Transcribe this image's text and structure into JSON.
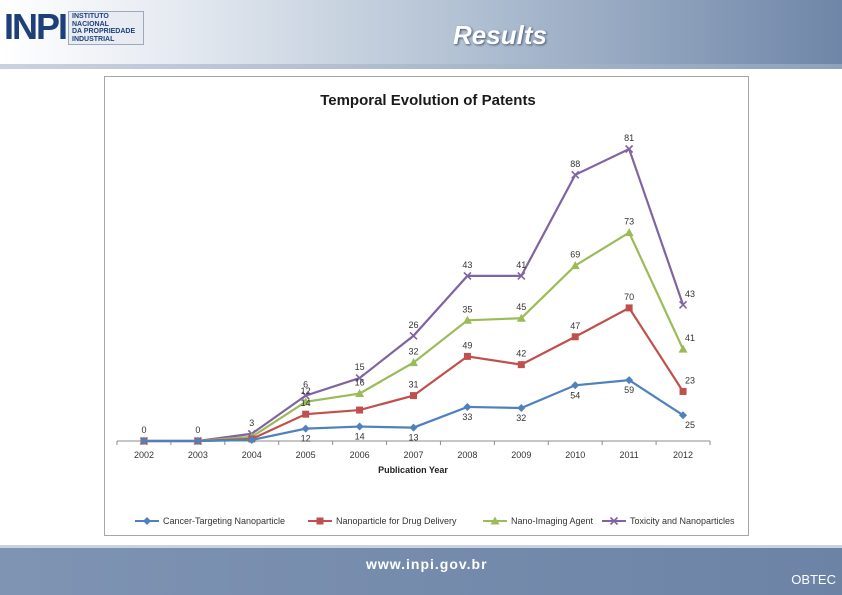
{
  "slide": {
    "title": "Results",
    "logo_mark": "INPI",
    "logo_text": "INSTITUTO\nNACIONAL\nDA PROPRIEDADE\nINDUSTRIAL",
    "url": "www.inpi.gov.br",
    "corner_text": "OBTEC"
  },
  "colors": {
    "header_bg": "#6f86a8",
    "footer_bg": "#7f94b3",
    "series": [
      "#4f81bd",
      "#c0504d",
      "#9bbb59",
      "#8064a2"
    ]
  },
  "chart_data": {
    "type": "line",
    "stacked": true,
    "title": "Temporal Evolution of Patents",
    "xlabel": "Publication Year",
    "ylabel": "",
    "categories": [
      "2002",
      "2003",
      "2004",
      "2005",
      "2006",
      "2007",
      "2008",
      "2009",
      "2010",
      "2011",
      "2012"
    ],
    "grid": false,
    "legend_position": "bottom",
    "series": [
      {
        "name": "Cancer-Targeting Nanoparticle",
        "marker": "diamond",
        "values": [
          0,
          0,
          1,
          12,
          14,
          13,
          33,
          32,
          54,
          59,
          25
        ],
        "labels": [
          "",
          "",
          "",
          "12",
          "14",
          "13",
          "33",
          "32",
          "54",
          "59",
          "25"
        ]
      },
      {
        "name": "Nanoparticle for Drug Delivery",
        "marker": "square",
        "values": [
          0,
          0,
          1,
          14,
          16,
          31,
          49,
          42,
          47,
          70,
          23
        ],
        "labels": [
          "",
          "",
          "",
          "14",
          "",
          "31",
          "49",
          "42",
          "47",
          "70",
          "23"
        ]
      },
      {
        "name": "Nano-Imaging Agent",
        "marker": "triangle",
        "values": [
          0,
          0,
          2,
          12,
          16,
          32,
          35,
          45,
          69,
          73,
          41
        ],
        "labels": [
          "",
          "",
          "",
          "12",
          "16",
          "32",
          "35",
          "45",
          "69",
          "73",
          "41"
        ]
      },
      {
        "name": "Toxicity and Nanoparticles",
        "marker": "x",
        "values": [
          0,
          0,
          3,
          6,
          15,
          26,
          43,
          41,
          88,
          81,
          43
        ],
        "labels": [
          "0",
          "0",
          "3",
          "6",
          "15",
          "26",
          "43",
          "41",
          "88",
          "81",
          "43"
        ]
      }
    ]
  }
}
